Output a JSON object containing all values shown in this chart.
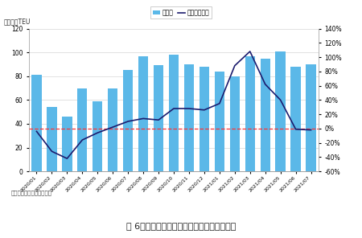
{
  "categories": [
    "2020/01",
    "2020/02",
    "2020/03",
    "2020/04",
    "2020/05",
    "2020/06",
    "2020/07",
    "2020/08",
    "2020/09",
    "2020/10",
    "2020/11",
    "2020/12",
    "2021/01",
    "2021/02",
    "2021/03",
    "2021/04",
    "2021/05",
    "2021/06",
    "2021/07"
  ],
  "throughput": [
    81,
    54,
    46,
    70,
    59,
    70,
    85,
    97,
    89,
    98,
    90,
    88,
    84,
    80,
    97,
    95,
    101,
    88,
    90
  ],
  "yoy": [
    -0.04,
    -0.32,
    -0.42,
    -0.16,
    -0.06,
    0.02,
    0.1,
    0.14,
    0.12,
    0.28,
    0.28,
    0.26,
    0.35,
    0.88,
    1.08,
    0.62,
    0.4,
    -0.01,
    -0.02
  ],
  "bar_color": "#5BB8E8",
  "line_color": "#1C1C6E",
  "hline_color": "#FF3333",
  "ylabel_left_unit": "单位：万TEU",
  "legend_bar": "吞吐量",
  "legend_line": "同比（右轴）",
  "source": "数据来源：宁波航运交易所",
  "caption": "图 6：美国洛杉矶港集装箱吞吐量及同期趋势",
  "ylim_left": [
    0,
    120
  ],
  "ylim_right": [
    -0.6,
    1.4
  ],
  "yticks_left": [
    0,
    20,
    40,
    60,
    80,
    100,
    120
  ],
  "yticks_right": [
    -0.6,
    -0.4,
    -0.2,
    0.0,
    0.2,
    0.4,
    0.6,
    0.8,
    1.0,
    1.2,
    1.4
  ],
  "ytick_labels_right": [
    "-60%",
    "-40%",
    "-20%",
    "0%",
    "20%",
    "40%",
    "60%",
    "80%",
    "100%",
    "120%",
    "140%"
  ],
  "hline_yval": 0.0,
  "background_color": "#ffffff",
  "border_color": "#999999"
}
